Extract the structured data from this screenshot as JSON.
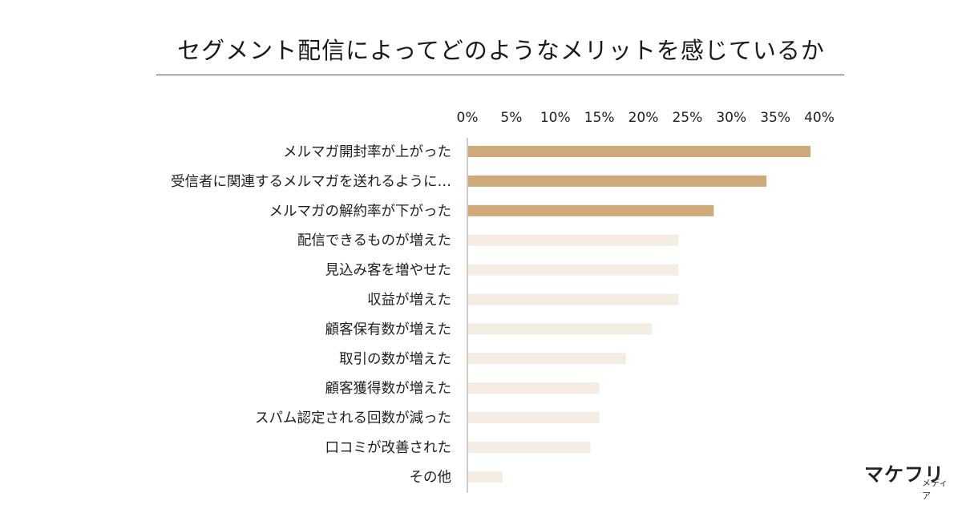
{
  "title": "セグメント配信によってどのようなメリットを感じているか",
  "logo": {
    "main": "マケフリ",
    "sub": "メディア"
  },
  "colors": {
    "highlight": "#cea97a",
    "normal": "#f3ede3",
    "axis": "#9a9a9a",
    "text": "#1f1f1f"
  },
  "chart_data": {
    "type": "bar",
    "orientation": "horizontal",
    "title": "セグメント配信によってどのようなメリットを感じているか",
    "xlabel": "",
    "ylabel": "",
    "xlim": [
      0,
      40
    ],
    "ticks": [
      0,
      5,
      10,
      15,
      20,
      25,
      30,
      35,
      40
    ],
    "tick_labels": [
      "0%",
      "5%",
      "10%",
      "15%",
      "20%",
      "25%",
      "30%",
      "35%",
      "40%"
    ],
    "grid": false,
    "legend": "none",
    "categories": [
      "メルマガ開封率が上がった",
      "受信者に関連するメルマガを送れるように…",
      "メルマガの解約率が下がった",
      "配信できるものが増えた",
      "見込み客を増やせた",
      "収益が増えた",
      "顧客保有数が増えた",
      "取引の数が増えた",
      "顧客獲得数が増えた",
      "スパム認定される回数が減った",
      "口コミが改善された",
      "その他"
    ],
    "values": [
      39.0,
      34.0,
      28.0,
      24.0,
      24.0,
      24.0,
      21.0,
      18.0,
      15.0,
      15.0,
      14.0,
      4.0
    ],
    "highlighted": [
      true,
      true,
      true,
      false,
      false,
      false,
      false,
      false,
      false,
      false,
      false,
      false
    ]
  }
}
